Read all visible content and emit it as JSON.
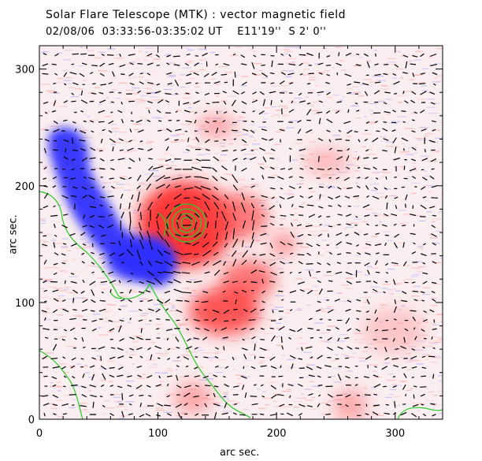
{
  "header": {
    "title": "Solar Flare Telescope (MTK) : vector magnetic field",
    "subtitle": "02/08/06  03:33:56-03:35:02 UT    E11'19''  S 2' 0''"
  },
  "axes": {
    "xlabel": "arc sec.",
    "ylabel": "arc sec.",
    "xticks": [
      0,
      100,
      200,
      300
    ],
    "yticks": [
      0,
      100,
      200,
      300
    ],
    "xlim": [
      0,
      340
    ],
    "ylim": [
      0,
      320
    ]
  },
  "colors": {
    "positive": "#ff3b3b",
    "negative": "#3838ff",
    "contour": "#22cc22",
    "vectors": "#000000"
  }
}
